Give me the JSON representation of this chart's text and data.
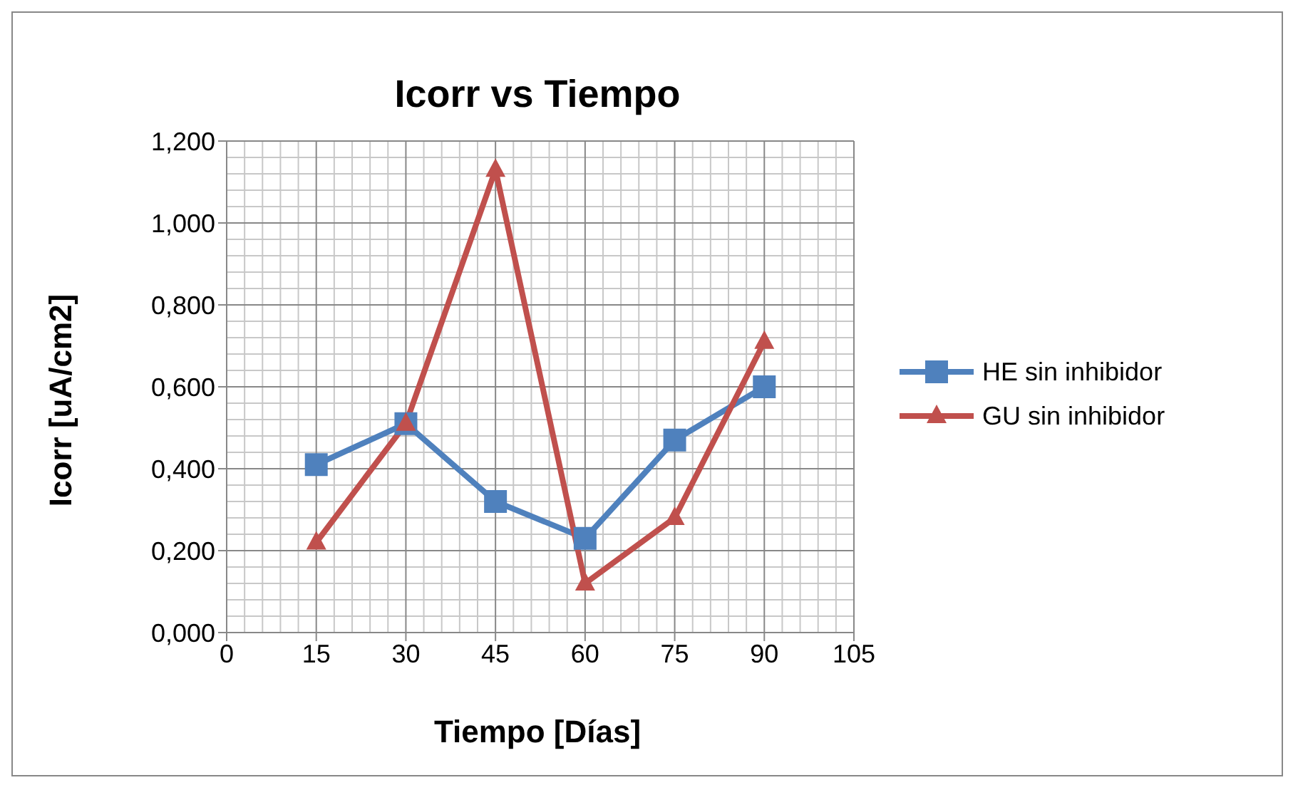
{
  "chart_data": {
    "type": "line",
    "title": "Icorr vs Tiempo",
    "xlabel": "Tiempo [Días]",
    "ylabel": "Icorr [uA/cm2]",
    "x": [
      15,
      30,
      45,
      60,
      75,
      90
    ],
    "series": [
      {
        "name": "HE sin inhibidor",
        "color": "#4f81bd",
        "marker": "square",
        "values": [
          0.41,
          0.51,
          0.32,
          0.23,
          0.47,
          0.6
        ]
      },
      {
        "name": "GU sin inhibidor",
        "color": "#c0504d",
        "marker": "triangle",
        "values": [
          0.22,
          0.51,
          1.13,
          0.12,
          0.28,
          0.71
        ]
      }
    ],
    "xlim": [
      0,
      105
    ],
    "xticks": [
      0,
      15,
      30,
      45,
      60,
      75,
      90,
      105
    ],
    "ylim": [
      0,
      1.2
    ],
    "yticks": [
      {
        "value": 0,
        "label": "0,000"
      },
      {
        "value": 0.2,
        "label": "0,200"
      },
      {
        "value": 0.4,
        "label": "0,400"
      },
      {
        "value": 0.6,
        "label": "0,600"
      },
      {
        "value": 0.8,
        "label": "0,800"
      },
      {
        "value": 1,
        "label": "1,000"
      },
      {
        "value": 1.2,
        "label": "1,200"
      }
    ],
    "grid": true,
    "legend": "right",
    "line_style": "solid"
  }
}
